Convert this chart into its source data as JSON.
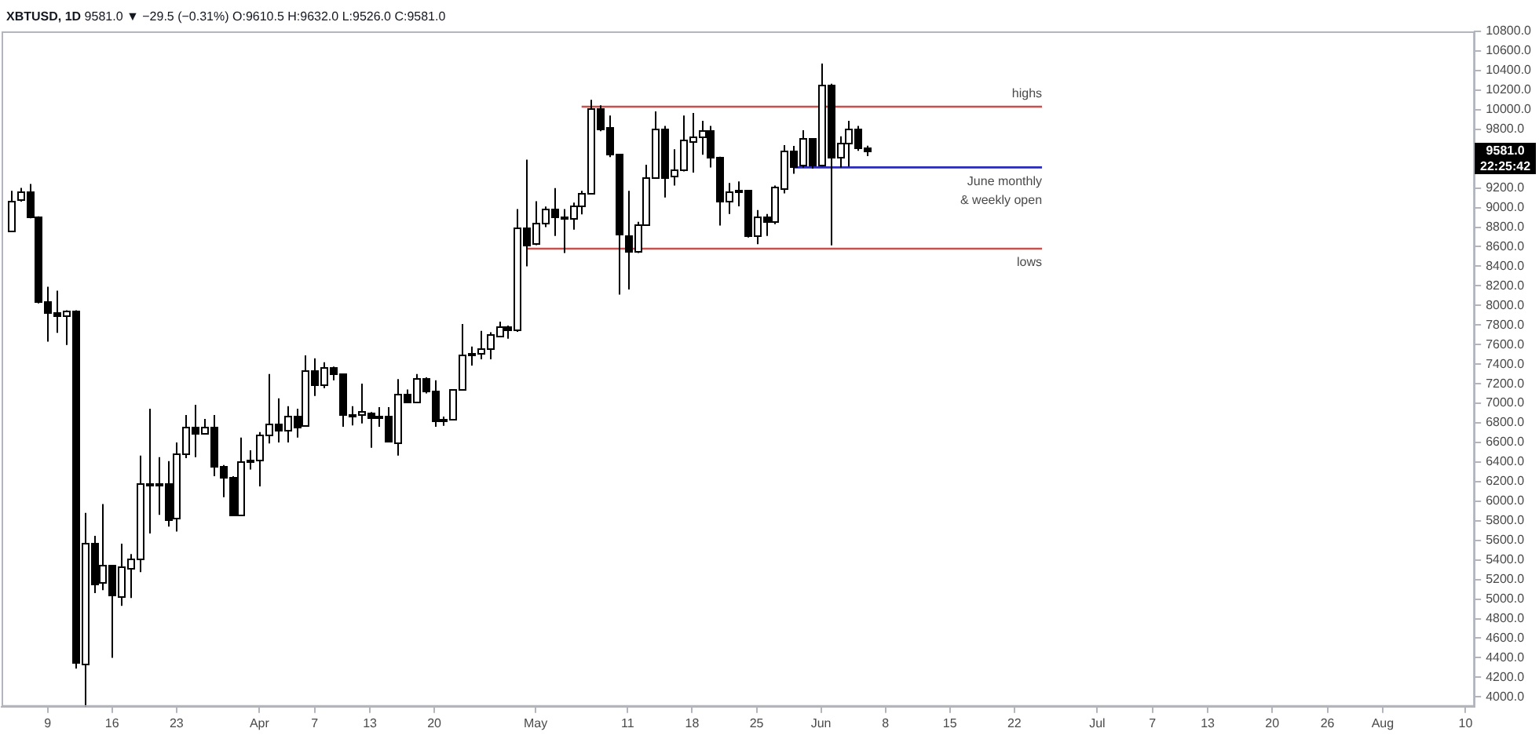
{
  "chart_data": {
    "type": "candlestick",
    "title": "XBTUSD, 1D",
    "subtitle": "9581.0 ▼ −29.5 (−0.31%) O:9610.5 H:9632.0 L:9526.0 C:9581.0",
    "xlim": [
      "--03-04",
      "--08-11"
    ],
    "xticks": [
      {
        "value": "--03-09",
        "label": "9"
      },
      {
        "value": "--03-16",
        "label": "16"
      },
      {
        "value": "--03-23",
        "label": "23"
      },
      {
        "value": "--04-01",
        "label": "Apr"
      },
      {
        "value": "--04-07",
        "label": "7"
      },
      {
        "value": "--04-13",
        "label": "13"
      },
      {
        "value": "--04-20",
        "label": "20"
      },
      {
        "value": "--05-01",
        "label": "May"
      },
      {
        "value": "--05-11",
        "label": "11"
      },
      {
        "value": "--05-18",
        "label": "18"
      },
      {
        "value": "--05-25",
        "label": "25"
      },
      {
        "value": "--06-01",
        "label": "Jun"
      },
      {
        "value": "--06-08",
        "label": "8"
      },
      {
        "value": "--06-15",
        "label": "15"
      },
      {
        "value": "--06-22",
        "label": "22"
      },
      {
        "value": "--07-01",
        "label": "Jul"
      },
      {
        "value": "--07-07",
        "label": "7"
      },
      {
        "value": "--07-13",
        "label": "13"
      },
      {
        "value": "--07-20",
        "label": "20"
      },
      {
        "value": "--07-26",
        "label": "26"
      },
      {
        "value": "--08-01",
        "label": "Aug"
      },
      {
        "value": "--08-10",
        "label": "10"
      }
    ],
    "ylim": [
      3900,
      10800
    ],
    "yticks": [
      {
        "value": 4000,
        "label": "4000.0"
      },
      {
        "value": 4200,
        "label": "4200.0"
      },
      {
        "value": 4400,
        "label": "4400.0"
      },
      {
        "value": 4600,
        "label": "4600.0"
      },
      {
        "value": 4800,
        "label": "4800.0"
      },
      {
        "value": 5000,
        "label": "5000.0"
      },
      {
        "value": 5200,
        "label": "5200.0"
      },
      {
        "value": 5400,
        "label": "5400.0"
      },
      {
        "value": 5600,
        "label": "5600.0"
      },
      {
        "value": 5800,
        "label": "5800.0"
      },
      {
        "value": 6000,
        "label": "6000.0"
      },
      {
        "value": 6200,
        "label": "6200.0"
      },
      {
        "value": 6400,
        "label": "6400.0"
      },
      {
        "value": 6600,
        "label": "6600.0"
      },
      {
        "value": 6800,
        "label": "6800.0"
      },
      {
        "value": 7000,
        "label": "7000.0"
      },
      {
        "value": 7200,
        "label": "7200.0"
      },
      {
        "value": 7400,
        "label": "7400.0"
      },
      {
        "value": 7600,
        "label": "7600.0"
      },
      {
        "value": 7800,
        "label": "7800.0"
      },
      {
        "value": 8000,
        "label": "8000.0"
      },
      {
        "value": 8200,
        "label": "8200.0"
      },
      {
        "value": 8400,
        "label": "8400.0"
      },
      {
        "value": 8600,
        "label": "8600.0"
      },
      {
        "value": 8800,
        "label": "8800.0"
      },
      {
        "value": 9000,
        "label": "9000.0"
      },
      {
        "value": 9200,
        "label": "9200.0"
      },
      {
        "value": 9400,
        "label": null
      },
      {
        "value": 9600,
        "label": null
      },
      {
        "value": 9800,
        "label": "9800.0"
      },
      {
        "value": 10000,
        "label": "10000.0"
      },
      {
        "value": 10200,
        "label": "10200.0"
      },
      {
        "value": 10400,
        "label": "10400.0"
      },
      {
        "value": 10600,
        "label": "10600.0"
      },
      {
        "value": 10800,
        "label": "10800.0"
      }
    ],
    "annotations": [
      "9581.0",
      "22:25:42"
    ],
    "series": [
      {
        "color": "#000000",
        "x": [
          "--03-05",
          "--03-06",
          "--03-07",
          "--03-08",
          "--03-09",
          "--03-10",
          "--03-11",
          "--03-12",
          "--03-13",
          "--03-14",
          "--03-15",
          "--03-16",
          "--03-17",
          "--03-18",
          "--03-19",
          "--03-20",
          "--03-21",
          "--03-22",
          "--03-23",
          "--03-24",
          "--03-25",
          "--03-26",
          "--03-27",
          "--03-28",
          "--03-29",
          "--03-30",
          "--03-31",
          "--04-01",
          "--04-02",
          "--04-03",
          "--04-04",
          "--04-05",
          "--04-06",
          "--04-07",
          "--04-08",
          "--04-09",
          "--04-10",
          "--04-11",
          "--04-12",
          "--04-13",
          "--04-14",
          "--04-15",
          "--04-16",
          "--04-17",
          "--04-18",
          "--04-19",
          "--04-20",
          "--04-21",
          "--04-22",
          "--04-23",
          "--04-24",
          "--04-25",
          "--04-26",
          "--04-27",
          "--04-28",
          "--04-29",
          "--04-30",
          "--05-01",
          "--05-02",
          "--05-03",
          "--05-04",
          "--05-05",
          "--05-06",
          "--05-07",
          "--05-08",
          "--05-09",
          "--05-10",
          "--05-11",
          "--05-12",
          "--05-13",
          "--05-14",
          "--05-15",
          "--05-16",
          "--05-17",
          "--05-18",
          "--05-19",
          "--05-20",
          "--05-21",
          "--05-22",
          "--05-23",
          "--05-24",
          "--05-25",
          "--05-26",
          "--05-27",
          "--05-28",
          "--05-29",
          "--05-30",
          "--05-31",
          "--06-01",
          "--06-02",
          "--06-03",
          "--06-04",
          "--06-05",
          "--06-06"
        ],
        "ohlc": [
          [
            8757,
            9170,
            8750,
            9065
          ],
          [
            9076,
            9200,
            9060,
            9161
          ],
          [
            9161,
            9240,
            8890,
            8906
          ],
          [
            8906,
            8910,
            8020,
            8041
          ],
          [
            8041,
            8190,
            7630,
            7925
          ],
          [
            7930,
            8150,
            7720,
            7904
          ],
          [
            7893,
            7950,
            7595,
            7946
          ],
          [
            7940,
            7950,
            4290,
            4344
          ],
          [
            4344,
            5880,
            3900,
            5580
          ],
          [
            5575,
            5645,
            5060,
            5156
          ],
          [
            5167,
            5970,
            5090,
            5342
          ],
          [
            5342,
            5350,
            4400,
            5034
          ],
          [
            5034,
            5565,
            4930,
            5336
          ],
          [
            5326,
            5460,
            5010,
            5416
          ],
          [
            5416,
            6465,
            5275,
            6185
          ],
          [
            6185,
            6945,
            5670,
            6175
          ],
          [
            6175,
            6450,
            5860,
            6190
          ],
          [
            6190,
            6410,
            5740,
            5819
          ],
          [
            5819,
            6600,
            5690,
            6482
          ],
          [
            6482,
            6880,
            6440,
            6758
          ],
          [
            6758,
            6985,
            6450,
            6689
          ],
          [
            6695,
            6840,
            6680,
            6758
          ],
          [
            6758,
            6880,
            6255,
            6365
          ],
          [
            6365,
            6370,
            6040,
            6249
          ],
          [
            6249,
            6255,
            5855,
            5867
          ],
          [
            5867,
            6650,
            5855,
            6413
          ],
          [
            6413,
            6520,
            6323,
            6425
          ],
          [
            6425,
            6705,
            6150,
            6678
          ],
          [
            6678,
            7300,
            6590,
            6795
          ],
          [
            6795,
            7050,
            6600,
            6731
          ],
          [
            6731,
            6970,
            6600,
            6880
          ],
          [
            6880,
            6945,
            6650,
            6774
          ],
          [
            6774,
            7490,
            6770,
            7341
          ],
          [
            7341,
            7460,
            7075,
            7198
          ],
          [
            7198,
            7420,
            7155,
            7368
          ],
          [
            7368,
            7375,
            7235,
            7299
          ],
          [
            7299,
            7305,
            6760,
            6875
          ],
          [
            6875,
            6970,
            6774,
            6890
          ],
          [
            6890,
            7200,
            6795,
            6915
          ],
          [
            6905,
            6910,
            6545,
            6864
          ],
          [
            6864,
            6960,
            6760,
            6870
          ],
          [
            6870,
            6960,
            6600,
            6609
          ],
          [
            6609,
            7246,
            6466,
            7103
          ],
          [
            7103,
            7140,
            7010,
            7023
          ],
          [
            7023,
            7300,
            7010,
            7262
          ],
          [
            7262,
            7265,
            7100,
            7129
          ],
          [
            7129,
            7235,
            6760,
            6822
          ],
          [
            6822,
            6865,
            6770,
            6840
          ],
          [
            6840,
            7145,
            6825,
            7140
          ],
          [
            7140,
            7810,
            7130,
            7490
          ],
          [
            7490,
            7580,
            7385,
            7510
          ],
          [
            7510,
            7740,
            7450,
            7555
          ],
          [
            7555,
            7725,
            7450,
            7702
          ],
          [
            7702,
            7835,
            7685,
            7792
          ],
          [
            7792,
            7795,
            7660,
            7755
          ],
          [
            7755,
            8985,
            7730,
            8800
          ],
          [
            8800,
            9490,
            8400,
            8630
          ],
          [
            8630,
            9065,
            8615,
            8837
          ],
          [
            8837,
            9010,
            8800,
            8986
          ],
          [
            8986,
            9198,
            8710,
            8906
          ],
          [
            8915,
            8985,
            8535,
            8895
          ],
          [
            8895,
            9050,
            8775,
            9028
          ],
          [
            9028,
            9170,
            8930,
            9155
          ],
          [
            9155,
            10100,
            9145,
            10020
          ],
          [
            10020,
            10045,
            9780,
            9818
          ],
          [
            9818,
            9940,
            9515,
            9543
          ],
          [
            9543,
            9550,
            8110,
            8720
          ],
          [
            8720,
            9171,
            8163,
            8561
          ],
          [
            8561,
            8855,
            8535,
            8827
          ],
          [
            8827,
            9437,
            8815,
            9315
          ],
          [
            9315,
            9983,
            9295,
            9808
          ],
          [
            9808,
            9835,
            9102,
            9315
          ],
          [
            9315,
            9596,
            9225,
            9383
          ],
          [
            9383,
            9940,
            9370,
            9686
          ],
          [
            9686,
            9967,
            9357,
            9728
          ],
          [
            9728,
            9887,
            9540,
            9792
          ],
          [
            9792,
            9835,
            9410,
            9516
          ],
          [
            9516,
            9520,
            8816,
            9065
          ],
          [
            9065,
            9251,
            8935,
            9161
          ],
          [
            9161,
            9267,
            9012,
            9175
          ],
          [
            9175,
            9180,
            8694,
            8710
          ],
          [
            8710,
            8975,
            8625,
            8901
          ],
          [
            8901,
            8935,
            8710,
            8853
          ],
          [
            8853,
            9225,
            8830,
            9208
          ],
          [
            9208,
            9638,
            9145,
            9585
          ],
          [
            9585,
            9630,
            9345,
            9426
          ],
          [
            9426,
            9790,
            9410,
            9702
          ],
          [
            9702,
            9705,
            9400,
            9437
          ],
          [
            9437,
            10471,
            9420,
            10259
          ],
          [
            10259,
            10265,
            8614,
            9527
          ],
          [
            9527,
            9728,
            9410,
            9665
          ],
          [
            9665,
            9887,
            9420,
            9808
          ],
          [
            9808,
            9835,
            9580,
            9622
          ],
          [
            9610.5,
            9632.0,
            9526.0,
            9581.0
          ]
        ],
        "colors": [
          "#ffffff",
          "#ffffff",
          "#000000",
          "#000000",
          "#000000",
          "#000000",
          "#ffffff",
          "#000000",
          "#ffffff",
          "#000000",
          "#ffffff",
          "#000000",
          "#ffffff",
          "#ffffff",
          "#ffffff",
          "#000000",
          "#ffffff",
          "#000000",
          "#ffffff",
          "#ffffff",
          "#000000",
          "#ffffff",
          "#000000",
          "#000000",
          "#000000",
          "#ffffff",
          "#ffffff",
          "#ffffff",
          "#ffffff",
          "#000000",
          "#ffffff",
          "#000000",
          "#ffffff",
          "#000000",
          "#ffffff",
          "#000000",
          "#000000",
          "#ffffff",
          "#ffffff",
          "#000000",
          "#ffffff",
          "#000000",
          "#ffffff",
          "#000000",
          "#ffffff",
          "#000000",
          "#000000",
          "#ffffff",
          "#ffffff",
          "#ffffff",
          "#ffffff",
          "#ffffff",
          "#ffffff",
          "#ffffff",
          "#000000",
          "#ffffff",
          "#000000",
          "#ffffff",
          "#ffffff",
          "#000000",
          "#000000",
          "#ffffff",
          "#ffffff",
          "#ffffff",
          "#000000",
          "#000000",
          "#000000",
          "#000000",
          "#ffffff",
          "#ffffff",
          "#ffffff",
          "#000000",
          "#ffffff",
          "#ffffff",
          "#ffffff",
          "#ffffff",
          "#000000",
          "#000000",
          "#ffffff",
          "#ffffff",
          "#000000",
          "#ffffff",
          "#000000",
          "#ffffff",
          "#ffffff",
          "#000000",
          "#ffffff",
          "#000000",
          "#ffffff",
          "#000000",
          "#ffffff",
          "#ffffff",
          "#000000",
          "#000000"
        ]
      },
      {
        "type": "line",
        "name": "highs",
        "color": "#c8504c",
        "x": [
          "--05-06",
          "--06-25"
        ],
        "values": [
          10030,
          10030
        ]
      },
      {
        "type": "line",
        "name": "lows",
        "color": "#c8504c",
        "x": [
          "--04-30",
          "--06-25"
        ],
        "values": [
          8580,
          8580
        ]
      },
      {
        "type": "line",
        "name": "June monthly\n& weekly open",
        "color": "#2a2ab8",
        "x": [
          "--05-29",
          "--06-25"
        ],
        "values": [
          9410,
          9410
        ]
      }
    ]
  }
}
